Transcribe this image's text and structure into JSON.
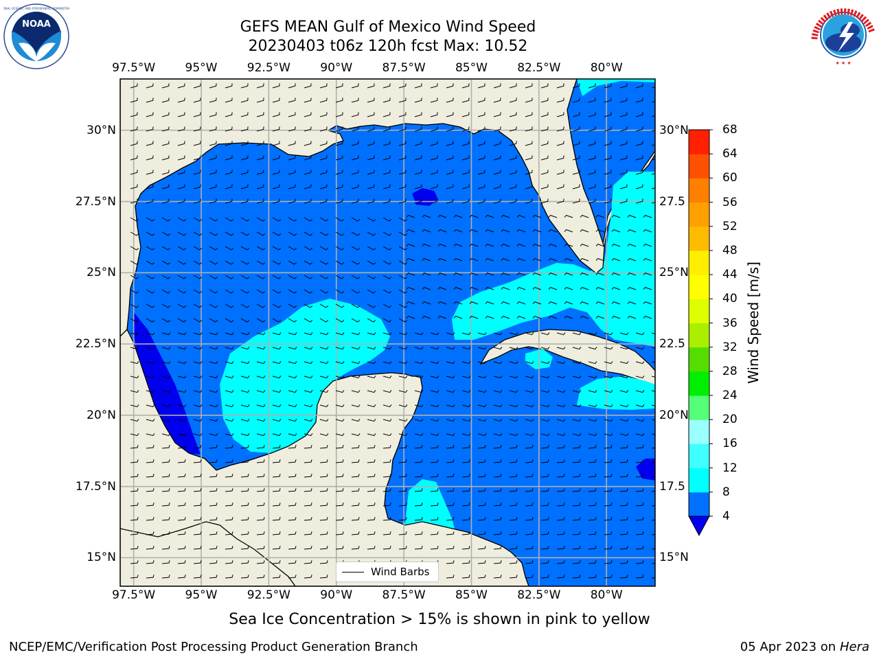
{
  "title": {
    "line1": "GEFS MEAN Gulf of Mexico Wind Speed",
    "line2": "20230403 t06z 120h fcst   Max: 10.52"
  },
  "logos": {
    "left": {
      "name": "NOAA",
      "ring_text": "NATIONAL OCEANIC AND ATMOSPHERIC ADMINISTRATION · U.S. DEPARTMENT OF COMMERCE"
    },
    "right": {
      "name": "NATIONAL WEATHER SERVICE"
    }
  },
  "map": {
    "lon_ticks": [
      "97.5°W",
      "95°W",
      "92.5°W",
      "90°W",
      "87.5°W",
      "85°W",
      "82.5°W",
      "80°W"
    ],
    "lon_values": [
      -97.5,
      -95,
      -92.5,
      -90,
      -87.5,
      -85,
      -82.5,
      -80
    ],
    "lat_ticks_left": [
      "30°N",
      "27.5°N",
      "25°N",
      "22.5°N",
      "20°N",
      "17.5°N",
      "15°N"
    ],
    "lat_ticks_right": [
      "30°N",
      "27.5",
      "25°N",
      "22.5",
      "20°N",
      "17.5",
      "15°N"
    ],
    "lat_values": [
      30,
      27.5,
      25,
      22.5,
      20,
      17.5,
      15
    ],
    "extent": {
      "lon_min": -98,
      "lon_max": -78.2,
      "lat_min": 14,
      "lat_max": 31.8
    },
    "legend_label": "Wind Barbs",
    "land_color": "#efeddd",
    "grid_color": "#b0b0b0"
  },
  "colorbar": {
    "label": "Wind Speed [m/s]",
    "ticks": [
      "4",
      "8",
      "12",
      "16",
      "20",
      "24",
      "28",
      "32",
      "36",
      "40",
      "44",
      "48",
      "52",
      "56",
      "60",
      "64",
      "68"
    ],
    "colors": [
      "#0070ff",
      "#00ffff",
      "#40ffff",
      "#99ffff",
      "#55ff77",
      "#00ee00",
      "#55dd00",
      "#aaee00",
      "#ddff00",
      "#ffff00",
      "#ffee00",
      "#ffbb00",
      "#ffa000",
      "#ff8000",
      "#ff5000",
      "#ff2000"
    ],
    "under_color": "#0000ee"
  },
  "subtitle": "Sea Ice Concentration > 15% is shown in pink to yellow",
  "footer": {
    "left": "NCEP/EMC/Verification Post Processing Product Generation Branch",
    "right_date": "05 Apr 2023 on",
    "right_machine": "Hera"
  }
}
